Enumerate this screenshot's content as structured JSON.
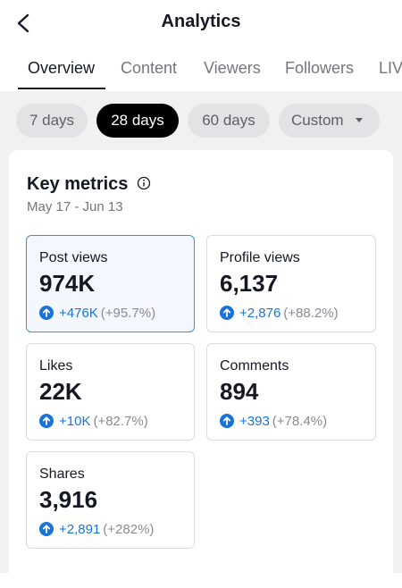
{
  "header": {
    "title": "Analytics"
  },
  "tabs": [
    "Overview",
    "Content",
    "Viewers",
    "Followers",
    "LIVE"
  ],
  "selected_tab": 0,
  "filters": [
    "7 days",
    "28 days",
    "60 days",
    "Custom"
  ],
  "selected_filter": 1,
  "card": {
    "title": "Key metrics",
    "date_range": "May 17 - Jun 13",
    "selected_metric": 0,
    "metrics": [
      {
        "name": "Post views",
        "value": "974K",
        "change": "+476K",
        "change_pct": "(+95.7%)"
      },
      {
        "name": "Profile views",
        "value": "6,137",
        "change": "+2,876",
        "change_pct": "(+88.2%)"
      },
      {
        "name": "Likes",
        "value": "22K",
        "change": "+10K",
        "change_pct": "(+82.7%)"
      },
      {
        "name": "Comments",
        "value": "894",
        "change": "+393",
        "change_pct": "(+78.4%)"
      },
      {
        "name": "Shares",
        "value": "3,916",
        "change": "+2,891",
        "change_pct": "(+282%)"
      }
    ]
  }
}
